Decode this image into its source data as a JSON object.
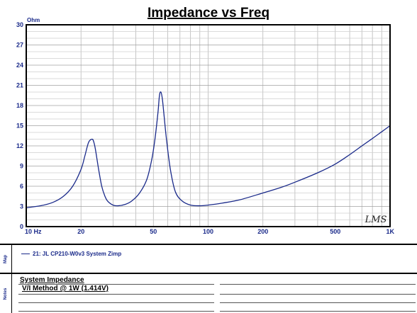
{
  "chart_data": {
    "type": "line",
    "title": "Impedance vs Freq",
    "y_unit": "Ohm",
    "xscale": "log",
    "xlim": [
      10,
      1000
    ],
    "ylim": [
      0,
      30
    ],
    "x_ticks": [
      {
        "value": 10,
        "label": "10 Hz"
      },
      {
        "value": 20,
        "label": "20"
      },
      {
        "value": 50,
        "label": "50"
      },
      {
        "value": 100,
        "label": "100"
      },
      {
        "value": 200,
        "label": "200"
      },
      {
        "value": 500,
        "label": "500"
      },
      {
        "value": 1000,
        "label": "1K"
      }
    ],
    "y_ticks": [
      0,
      3,
      6,
      9,
      12,
      15,
      18,
      21,
      24,
      27,
      30
    ],
    "grid": true,
    "watermark": "LMS",
    "series": [
      {
        "name": "21: JL CP210-W0v3 System Zimp",
        "color": "#1a2a8a",
        "x": [
          10,
          12,
          14,
          16,
          18,
          20,
          21,
          22,
          23,
          23.5,
          24,
          25,
          26,
          27,
          28,
          30,
          32,
          35,
          38,
          42,
          46,
          49,
          51,
          53,
          54,
          55,
          56,
          57,
          59,
          62,
          66,
          72,
          80,
          90,
          100,
          120,
          150,
          200,
          250,
          300,
          400,
          500,
          600,
          700,
          800,
          900,
          1000
        ],
        "y": [
          2.8,
          3.1,
          3.6,
          4.5,
          6.0,
          8.5,
          10.5,
          12.5,
          13.0,
          12.6,
          11.5,
          8.5,
          6.0,
          4.6,
          3.8,
          3.2,
          3.1,
          3.3,
          3.8,
          5.0,
          7.0,
          10.0,
          13.0,
          17.0,
          19.5,
          20.0,
          19.0,
          17.0,
          13.0,
          8.5,
          5.2,
          3.8,
          3.2,
          3.1,
          3.2,
          3.5,
          4.0,
          5.0,
          5.8,
          6.6,
          8.0,
          9.3,
          10.7,
          12.0,
          13.1,
          14.1,
          15.0
        ]
      }
    ]
  },
  "map_panel": {
    "tag": "Map",
    "entry": "21: JL CP210-W0v3 System Zimp"
  },
  "notes_panel": {
    "tag": "Notes",
    "line1": "System Impedance",
    "line2": "V/I Method @ 1W (1.414V)"
  }
}
